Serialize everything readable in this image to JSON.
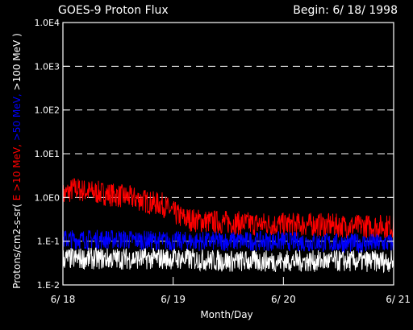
{
  "chart_data": {
    "type": "line",
    "title": "GOES-9 Proton Flux",
    "begin_label": "Begin: 6/ 18/ 1998",
    "xlabel": "Month/Day",
    "ylabel_parts": [
      {
        "text": "Protons/cm2-s-sr( ",
        "color": "#ffffff"
      },
      {
        "text": "E >10 MeV, ",
        "color": "#ff0000"
      },
      {
        "text": ">50 MeV, ",
        "color": "#0000ff"
      },
      {
        "text": ">100 MeV )",
        "color": "#ffffff"
      }
    ],
    "x_ticks": [
      "6/ 18",
      "6/ 19",
      "6/ 20",
      "6/ 21"
    ],
    "xlim": [
      0,
      3
    ],
    "y_ticks": [
      "1.E-2",
      "1.E-1",
      "1.0E0",
      "1.0E1",
      "1.0E2",
      "1.0E3",
      "1.0E4"
    ],
    "ylim": [
      0.01,
      10000
    ],
    "y_scale": "log",
    "grid": "dashed horizontal",
    "series": [
      {
        "color": "#ff0000",
        "x": [
          0,
          0.1,
          0.2,
          0.3,
          0.4,
          0.5,
          0.6,
          0.7,
          0.8,
          0.9,
          1.0,
          1.1,
          1.2,
          1.3,
          1.5,
          1.7,
          2.0,
          2.3,
          2.6,
          3.0
        ],
        "y": [
          1.1,
          1.6,
          1.4,
          1.3,
          1.2,
          1.1,
          1.0,
          0.9,
          0.75,
          0.7,
          0.45,
          0.33,
          0.3,
          0.28,
          0.27,
          0.25,
          0.24,
          0.24,
          0.22,
          0.22
        ]
      },
      {
        "color": "#0000ff",
        "x": [
          0,
          0.5,
          1.0,
          1.5,
          2.0,
          2.5,
          3.0
        ],
        "y": [
          0.11,
          0.11,
          0.1,
          0.1,
          0.1,
          0.09,
          0.09
        ]
      },
      {
        "color": "#ffffff",
        "x": [
          0,
          0.5,
          1.0,
          1.5,
          2.0,
          2.5,
          3.0
        ],
        "y": [
          0.04,
          0.04,
          0.04,
          0.035,
          0.035,
          0.035,
          0.035
        ]
      }
    ]
  }
}
